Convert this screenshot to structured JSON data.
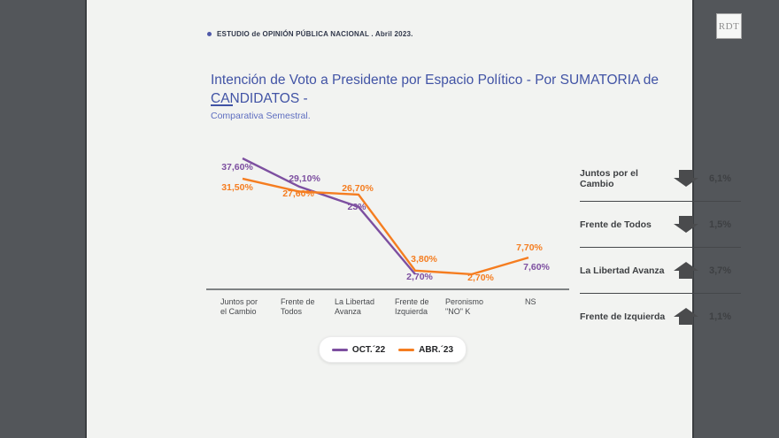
{
  "header": {
    "brief": "ESTUDIO de OPINIÓN PÚBLICA NACIONAL . Abril 2023.",
    "logo": "RDT"
  },
  "title": {
    "line1": "Intención de Voto a Presidente por Espacio Político - Por SUMATORIA de",
    "line2": "CANDIDATOS -",
    "subtitle": "Comparativa Semestral."
  },
  "chart_data": {
    "type": "line",
    "title": "Intención de Voto a Presidente por Espacio Político - Por SUMATORIA de CANDIDATOS - Comparativa Semestral",
    "categories": [
      "Juntos por el Cambio",
      "Frente de Todos",
      "La Libertad Avanza",
      "Frente de Izquierda",
      "Peronismo \"NO\" K",
      "NS"
    ],
    "category_lines": [
      [
        "Juntos por",
        "el Cambio"
      ],
      [
        "Frente de",
        "Todos"
      ],
      [
        "La Libertad",
        "Avanza"
      ],
      [
        "Frente de",
        "Izquierda"
      ],
      [
        "Peronismo",
        "\"NO\" K"
      ],
      [
        "NS"
      ]
    ],
    "series": [
      {
        "name": "OCT.´22",
        "color": "#7d4fa0",
        "values": [
          37.6,
          29.1,
          23,
          2.7,
          null,
          7.6
        ],
        "labels": [
          "37,60%",
          "29,10%",
          "23%",
          "2,70%",
          null,
          "7,60%"
        ]
      },
      {
        "name": "ABR.´23",
        "color": "#f57d20",
        "values": [
          31.5,
          27.6,
          26.7,
          3.8,
          2.7,
          7.7
        ],
        "labels": [
          "31,50%",
          "27,60%",
          "26,70%",
          "3,80%",
          "2,70%",
          "7,70%"
        ]
      }
    ],
    "ylim": [
      0,
      42
    ],
    "grid": false,
    "legend_position": "bottom"
  },
  "summary": {
    "rows": [
      {
        "label": "Juntos por el Cambio",
        "direction": "down",
        "value": "6,1%"
      },
      {
        "label": "Frente de Todos",
        "direction": "down",
        "value": "1,5%"
      },
      {
        "label": "La Libertad Avanza",
        "direction": "up",
        "value": "3,7%"
      },
      {
        "label": "Frente de Izquierda",
        "direction": "up",
        "value": "1,1%"
      }
    ]
  },
  "colors": {
    "accent_blue": "#4153a5",
    "purple": "#7d4fa0",
    "orange": "#f57d20",
    "dark_gray": "#53565a",
    "arrow_gray": "#4a4b4d",
    "panel_bg": "#f2f3f1"
  }
}
